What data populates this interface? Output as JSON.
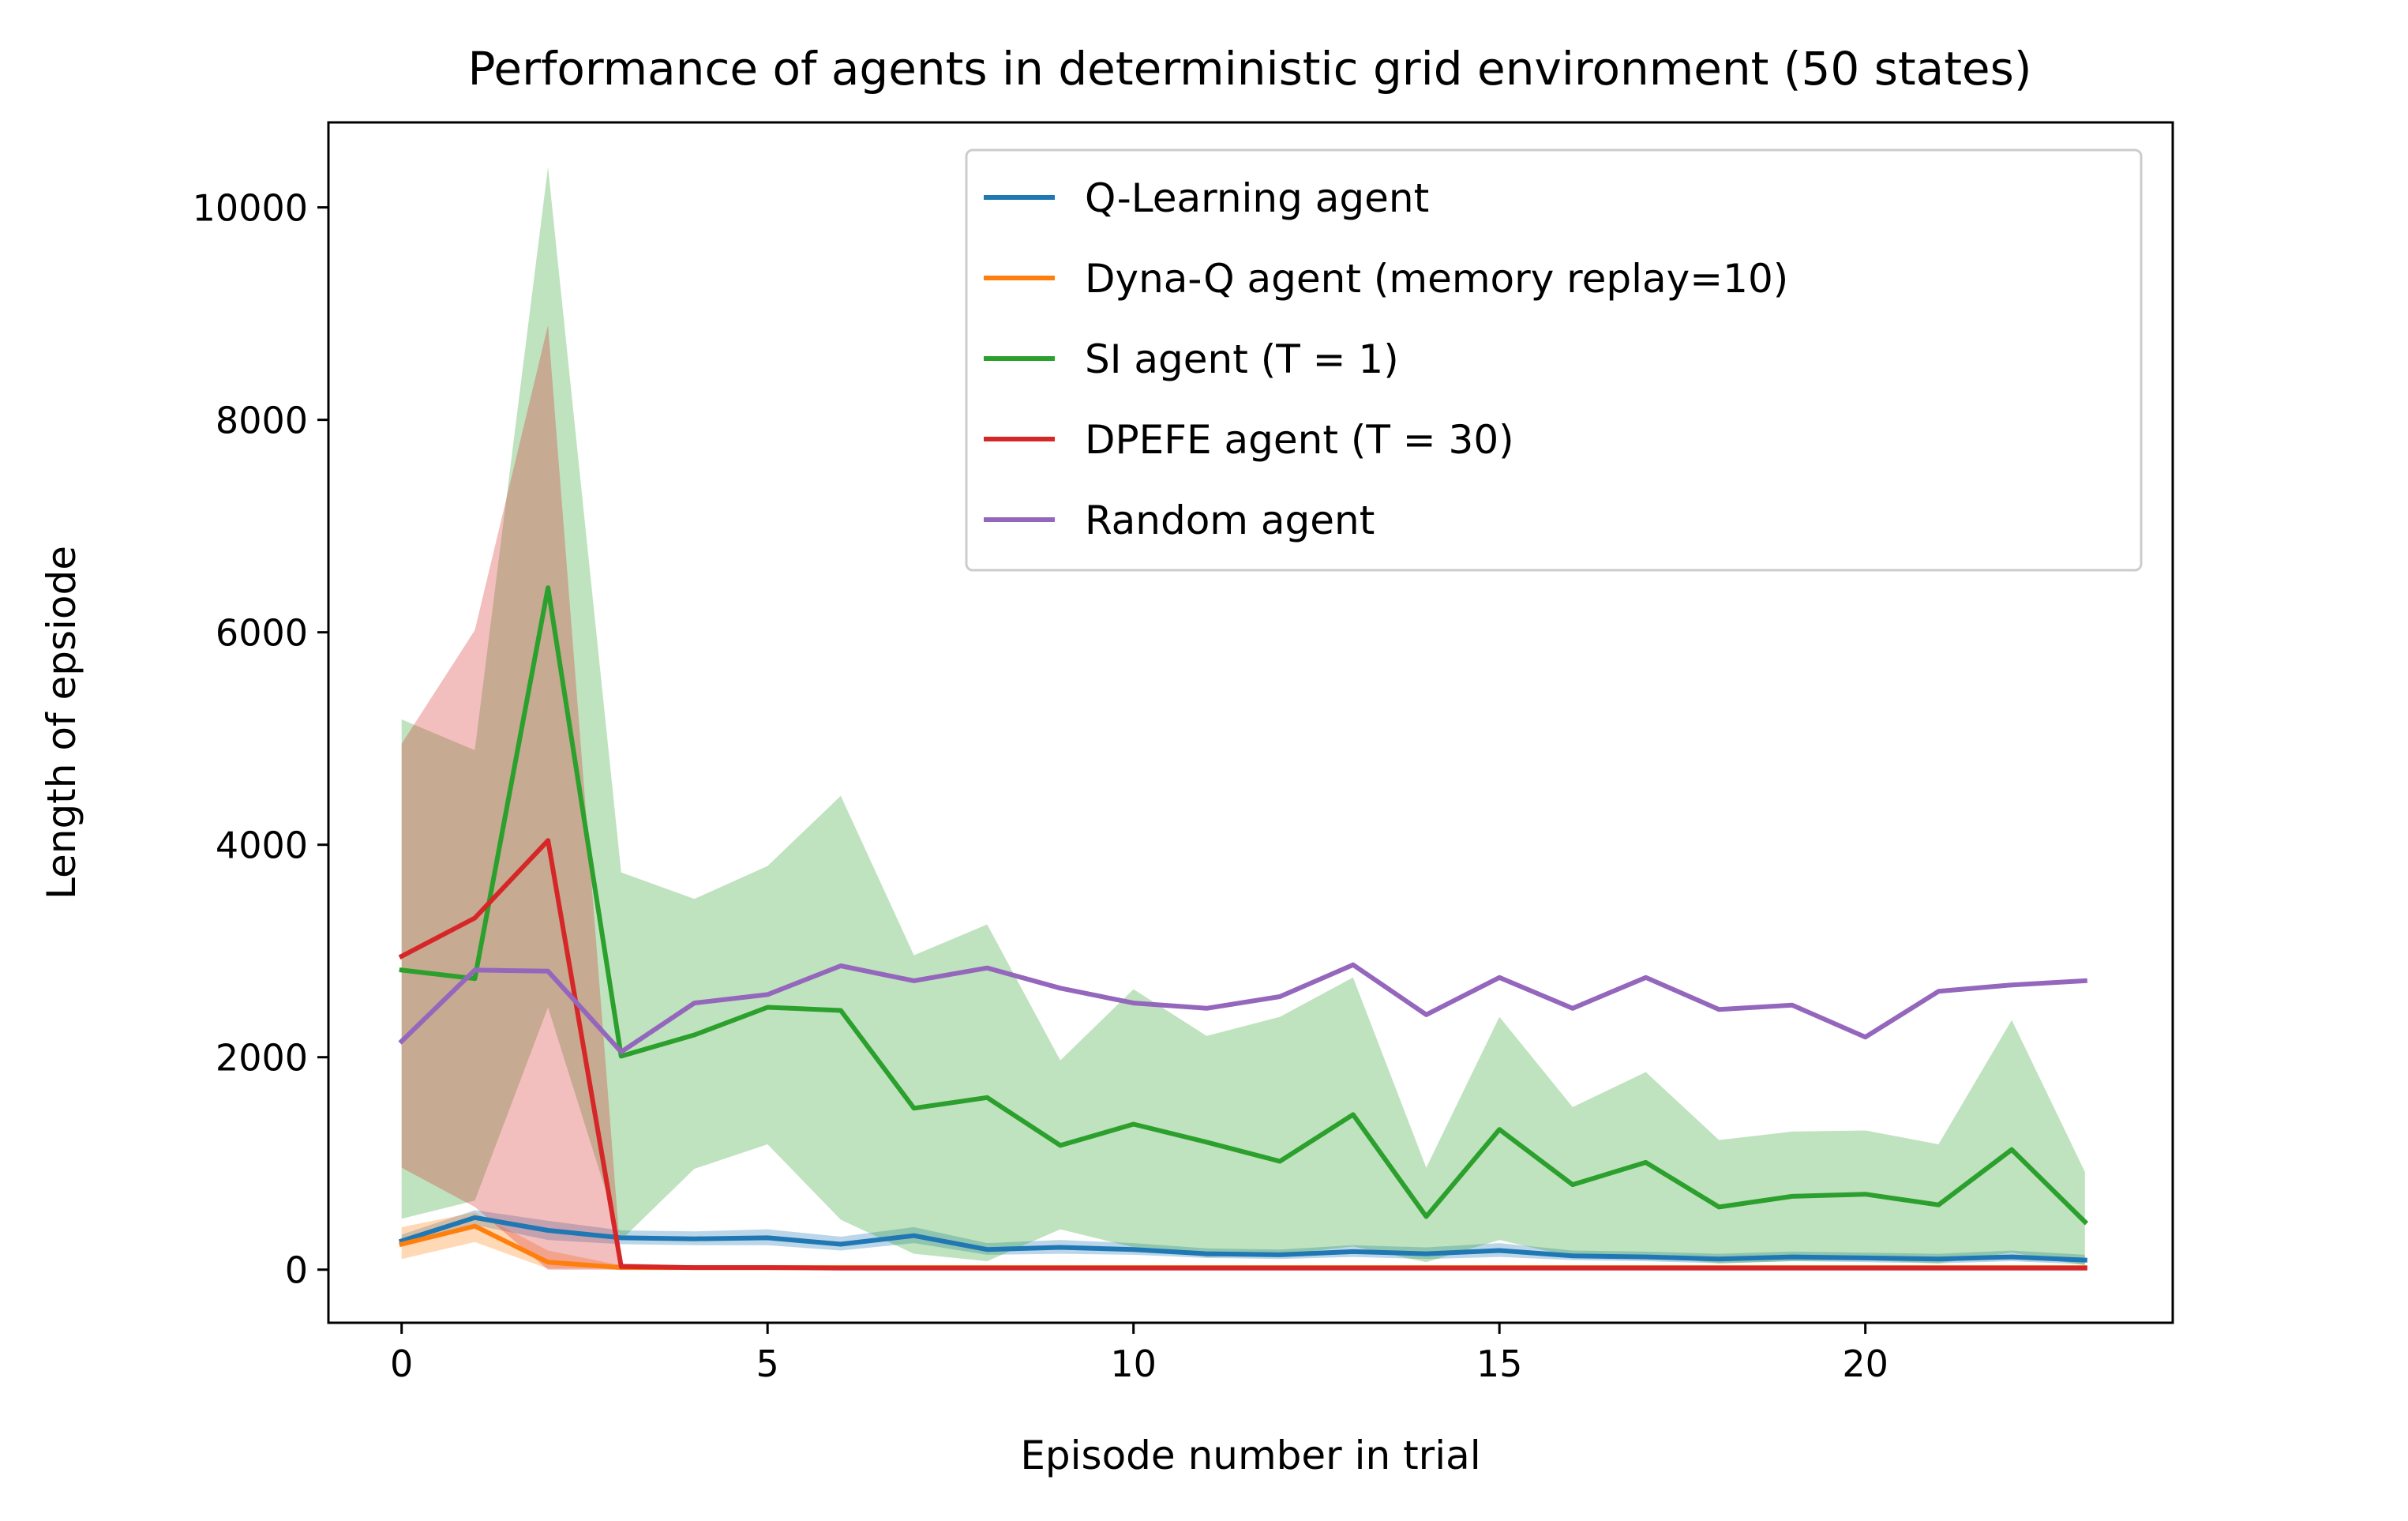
{
  "chart_data": {
    "type": "line",
    "title": "Performance of agents in deterministic grid environment (50 states)",
    "xlabel": "Episode number in trial",
    "ylabel": "Length of epsiode",
    "xlim": [
      -1,
      24.2
    ],
    "ylim": [
      -500,
      10800
    ],
    "xticks": [
      0,
      5,
      10,
      15,
      20
    ],
    "yticks": [
      0,
      2000,
      4000,
      6000,
      8000,
      10000
    ],
    "grid": false,
    "legend_position": "top-right",
    "x": [
      0,
      1,
      2,
      3,
      4,
      5,
      6,
      7,
      8,
      9,
      10,
      11,
      12,
      13,
      14,
      15,
      16,
      17,
      18,
      19,
      20,
      21,
      22,
      23
    ],
    "series": [
      {
        "name": "Q-Learning agent",
        "color": "#1f77b4",
        "values": [
          270,
          490,
          370,
          300,
          290,
          300,
          240,
          320,
          190,
          210,
          190,
          150,
          140,
          170,
          150,
          180,
          130,
          120,
          100,
          120,
          110,
          100,
          120,
          90
        ],
        "lower": [
          220,
          420,
          280,
          240,
          230,
          230,
          180,
          250,
          140,
          150,
          140,
          110,
          100,
          120,
          100,
          120,
          90,
          80,
          60,
          80,
          70,
          60,
          80,
          50
        ],
        "upper": [
          330,
          560,
          460,
          370,
          360,
          380,
          310,
          400,
          250,
          280,
          250,
          200,
          190,
          230,
          210,
          250,
          180,
          170,
          150,
          170,
          160,
          150,
          180,
          140
        ]
      },
      {
        "name": "Dyna-Q agent (memory replay=10)",
        "color": "#ff7f0e",
        "values": [
          240,
          410,
          70,
          20,
          20,
          20,
          20,
          20,
          20,
          20,
          20,
          20,
          20,
          20,
          20,
          20,
          20,
          20,
          20,
          20,
          20,
          20,
          20,
          20
        ],
        "lower": [
          100,
          260,
          10,
          10,
          10,
          10,
          10,
          10,
          10,
          10,
          10,
          10,
          10,
          10,
          10,
          10,
          10,
          10,
          10,
          10,
          10,
          10,
          10,
          10
        ],
        "upper": [
          400,
          540,
          180,
          40,
          40,
          40,
          40,
          40,
          40,
          40,
          40,
          40,
          40,
          40,
          40,
          40,
          40,
          40,
          40,
          40,
          40,
          40,
          40,
          40
        ]
      },
      {
        "name": "SI agent (T = 1)",
        "color": "#2ca02c",
        "values": [
          2820,
          2740,
          6420,
          2010,
          2210,
          2470,
          2440,
          1520,
          1620,
          1170,
          1370,
          1200,
          1020,
          1460,
          500,
          1320,
          800,
          1010,
          590,
          690,
          710,
          610,
          1130,
          450
        ],
        "lower": [
          480,
          650,
          2470,
          280,
          950,
          1180,
          470,
          150,
          80,
          380,
          210,
          120,
          140,
          220,
          70,
          280,
          120,
          130,
          60,
          80,
          90,
          60,
          160,
          40
        ],
        "upper": [
          5180,
          4890,
          10380,
          3740,
          3490,
          3800,
          4460,
          2960,
          3250,
          1970,
          2640,
          2200,
          2380,
          2750,
          960,
          2380,
          1530,
          1860,
          1220,
          1300,
          1310,
          1180,
          2350,
          920
        ]
      },
      {
        "name": "DPEFE agent (T = 30)",
        "color": "#d62728",
        "values": [
          2950,
          3310,
          4040,
          30,
          20,
          20,
          15,
          15,
          15,
          15,
          15,
          15,
          15,
          15,
          15,
          15,
          15,
          15,
          15,
          15,
          15,
          15,
          15,
          15
        ],
        "lower": [
          960,
          590,
          0,
          0,
          0,
          0,
          0,
          0,
          0,
          0,
          0,
          0,
          0,
          0,
          0,
          0,
          0,
          0,
          0,
          0,
          0,
          0,
          0,
          0
        ],
        "upper": [
          4950,
          6020,
          8890,
          60,
          40,
          40,
          30,
          30,
          30,
          30,
          30,
          30,
          30,
          30,
          30,
          30,
          30,
          30,
          30,
          30,
          30,
          30,
          30,
          30
        ]
      },
      {
        "name": "Random agent",
        "color": "#9467bd",
        "values": [
          2150,
          2820,
          2810,
          2050,
          2510,
          2590,
          2860,
          2720,
          2840,
          2650,
          2510,
          2460,
          2570,
          2870,
          2400,
          2750,
          2460,
          2750,
          2450,
          2490,
          2190,
          2620,
          2680,
          2720
        ]
      }
    ]
  }
}
